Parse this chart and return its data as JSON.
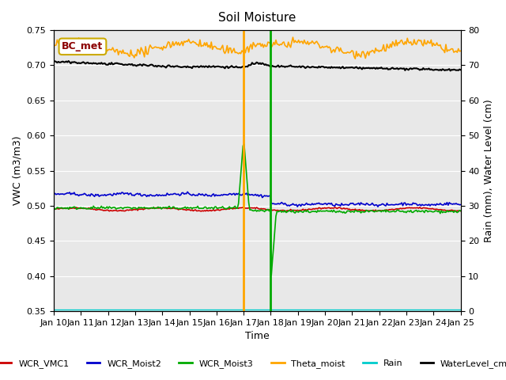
{
  "title": "Soil Moisture",
  "xlabel": "Time",
  "ylabel_left": "VWC (m3/m3)",
  "ylabel_right": "Rain (mm), Water Level (cm)",
  "xlim_days": [
    0,
    15
  ],
  "ylim_left": [
    0.35,
    0.75
  ],
  "ylim_right": [
    0,
    80
  ],
  "yticks_left": [
    0.35,
    0.4,
    0.45,
    0.5,
    0.55,
    0.6,
    0.65,
    0.7,
    0.75
  ],
  "yticks_right": [
    0,
    10,
    20,
    30,
    40,
    50,
    60,
    70,
    80
  ],
  "xtick_labels": [
    "Jan 10",
    "Jan 11",
    "Jan 12",
    "Jan 13",
    "Jan 14",
    "Jan 15",
    "Jan 16",
    "Jan 17",
    "Jan 18",
    "Jan 19",
    "Jan 20",
    "Jan 21",
    "Jan 22",
    "Jan 23",
    "Jan 24",
    "Jan 25"
  ],
  "annotation_box_label": "BC_met",
  "background_color": "#e8e8e8",
  "colors": {
    "WCR_VMC1": "#cc0000",
    "WCR_Moist2": "#0000cc",
    "WCR_Moist3": "#00aa00",
    "Theta_moist": "#ffa500",
    "Rain": "#00cccc",
    "WaterLevel_cm": "#000000"
  },
  "legend_labels": [
    "WCR_VMC1",
    "WCR_Moist2",
    "WCR_Moist3",
    "Theta_moist",
    "Rain",
    "WaterLevel_cm"
  ]
}
